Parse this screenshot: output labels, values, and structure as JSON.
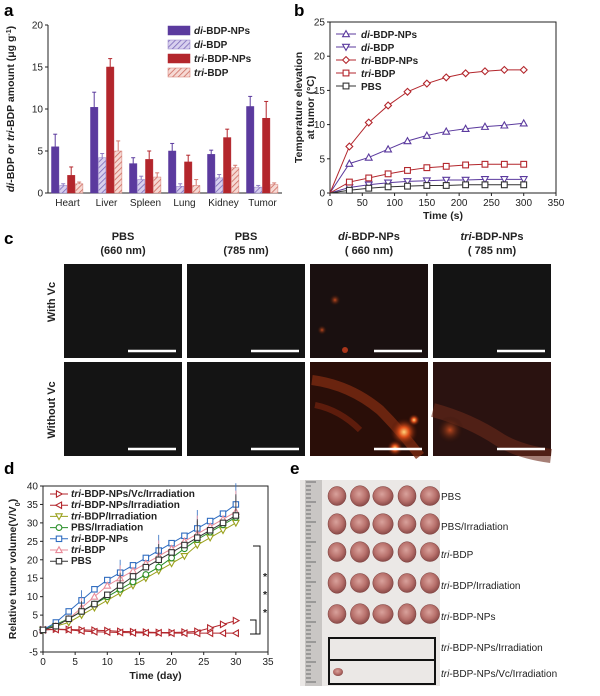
{
  "panel_labels": {
    "a": "a",
    "b": "b",
    "c": "c",
    "d": "d",
    "e": "e"
  },
  "colors": {
    "di_np": "#5b3a9e",
    "di_free": "#8f7cc4",
    "tri_np": "#b3262c",
    "tri_free": "#d4786e",
    "pbs": "#333333",
    "pbs_irr": "#2a8f2a",
    "tri_irr": "#9aa11d",
    "blue": "#2f6cc0",
    "pink": "#e88b9a"
  },
  "chart_data": [
    {
      "type": "bar",
      "panel": "a",
      "categories": [
        "Heart",
        "Liver",
        "Spleen",
        "Lung",
        "Kidney",
        "Tumor"
      ],
      "ylabel_parts": {
        "p1": "di",
        "p2": "-BDP or ",
        "p3": "tri",
        "p4": "-BDP amount (μg g",
        "p5": "-1",
        "p6": ")"
      },
      "ylim": [
        0,
        20
      ],
      "yticks": [
        "0",
        "5",
        "10",
        "15",
        "20"
      ],
      "series": [
        {
          "label_it": "di",
          "label_rest": "-BDP-NPs",
          "values": [
            5.5,
            10.2,
            3.5,
            5.0,
            4.6,
            10.3
          ],
          "errors": [
            1.5,
            1.8,
            0.7,
            0.9,
            0.5,
            1.2
          ]
        },
        {
          "label_it": "di",
          "label_rest": "-BDP",
          "values": [
            0.9,
            4.2,
            1.6,
            0.8,
            1.8,
            0.7
          ],
          "errors": [
            0.2,
            0.5,
            0.4,
            0.3,
            0.4,
            0.2
          ]
        },
        {
          "label_it": "tri",
          "label_rest": "-BDP-NPs",
          "values": [
            2.1,
            15.0,
            4.0,
            3.7,
            6.6,
            8.9
          ],
          "errors": [
            1.0,
            1.0,
            1.0,
            0.8,
            1.0,
            2.0
          ]
        },
        {
          "label_it": "tri",
          "label_rest": "-BDP",
          "values": [
            1.1,
            5.0,
            1.9,
            0.9,
            3.0,
            1.0
          ],
          "errors": [
            0.2,
            1.2,
            0.5,
            0.7,
            0.3,
            0.2
          ]
        }
      ]
    },
    {
      "type": "line",
      "panel": "b",
      "xlabel": "Time (s)",
      "ylabel_line1": "Temperature elevation",
      "ylabel_line2": "at tumor (°C)",
      "xlim": [
        0,
        350
      ],
      "ylim": [
        0,
        25
      ],
      "xticks": [
        "0",
        "50",
        "100",
        "150",
        "200",
        "250",
        "300",
        "350"
      ],
      "yticks": [
        "0",
        "5",
        "10",
        "15",
        "20",
        "25"
      ],
      "x": [
        0,
        30,
        60,
        90,
        120,
        150,
        180,
        210,
        240,
        270,
        300
      ],
      "series": [
        {
          "label_it": "di",
          "label_rest": "-BDP-NPs",
          "marker": "triangle-up",
          "values": [
            0,
            4.3,
            5.2,
            6.4,
            7.6,
            8.4,
            9.0,
            9.4,
            9.7,
            9.9,
            10.2
          ]
        },
        {
          "label_it": "di",
          "label_rest": "-BDP",
          "marker": "triangle-down",
          "values": [
            0,
            0.8,
            1.2,
            1.5,
            1.7,
            1.8,
            1.9,
            1.9,
            2.0,
            2.0,
            2.0
          ]
        },
        {
          "label_it": "tri",
          "label_rest": "-BDP-NPs",
          "marker": "diamond",
          "values": [
            0,
            6.8,
            10.3,
            12.8,
            14.8,
            16.0,
            16.9,
            17.5,
            17.8,
            18.0,
            18.0
          ]
        },
        {
          "label_it": "tri",
          "label_rest": "-BDP",
          "marker": "square",
          "values": [
            0,
            1.6,
            2.2,
            2.8,
            3.3,
            3.7,
            3.9,
            4.1,
            4.2,
            4.2,
            4.2
          ]
        },
        {
          "label_it": "",
          "label_rest": "PBS",
          "marker": "square-open",
          "values": [
            0,
            0.4,
            0.7,
            0.9,
            1.0,
            1.1,
            1.1,
            1.2,
            1.2,
            1.2,
            1.2
          ]
        }
      ]
    },
    {
      "type": "line",
      "panel": "d",
      "xlabel": "Time (day)",
      "ylabel_parts": {
        "p1": "Relative tumor volume(V/V",
        "p2": "0",
        "p3": ")"
      },
      "xlim": [
        0,
        35
      ],
      "ylim": [
        -5,
        40
      ],
      "xticks": [
        "0",
        "5",
        "10",
        "15",
        "20",
        "25",
        "30",
        "35"
      ],
      "yticks": [
        "-5",
        "0",
        "5",
        "10",
        "15",
        "20",
        "25",
        "30",
        "35",
        "40"
      ],
      "x": [
        0,
        2,
        4,
        6,
        8,
        10,
        12,
        14,
        16,
        18,
        20,
        22,
        24,
        26,
        28,
        30
      ],
      "significance": [
        "*",
        "*",
        "*"
      ],
      "series": [
        {
          "label_it": "tri",
          "label_rest": "-BDP-NPs/Vc/Irradiation",
          "marker": "triangle-right",
          "values": [
            1,
            1.2,
            1.1,
            1,
            0.9,
            0.8,
            0.6,
            0.5,
            0.4,
            0.3,
            0.3,
            0.4,
            0.6,
            1.5,
            2.5,
            3.5
          ]
        },
        {
          "label_it": "tri",
          "label_rest": "-BDP-NPs/Irradiation",
          "marker": "triangle-left",
          "values": [
            1,
            1.1,
            1,
            0.7,
            0.5,
            0.4,
            0.3,
            0.2,
            0.2,
            0.2,
            0.1,
            0.1,
            0.1,
            0.1,
            0.1,
            0.1
          ]
        },
        {
          "label_it": "tri",
          "label_rest": "-BDP/Irradiation",
          "marker": "triangle-down",
          "values": [
            1,
            2,
            3,
            5,
            7,
            9,
            11,
            13,
            15,
            17,
            19,
            21,
            24,
            26,
            28,
            30
          ]
        },
        {
          "label_it": "",
          "label_rest": "PBS/Irradiation",
          "marker": "circle",
          "values": [
            1,
            2.5,
            4,
            6,
            8,
            10,
            12,
            14,
            16,
            18,
            20.5,
            23,
            25.5,
            27.5,
            29.5,
            31.5
          ]
        },
        {
          "label_it": "tri",
          "label_rest": "-BDP-NPs",
          "marker": "square",
          "values": [
            1,
            3,
            6,
            9,
            12,
            14.5,
            16.5,
            18.5,
            20.5,
            22.5,
            24.5,
            26.5,
            28.5,
            30.5,
            32.5,
            35
          ]
        },
        {
          "label_it": "tri",
          "label_rest": "-BDP",
          "marker": "triangle-up",
          "values": [
            1,
            2,
            4,
            7,
            10,
            13,
            15,
            17,
            19,
            21,
            23,
            25,
            27,
            29,
            31,
            33
          ]
        },
        {
          "label_it": "",
          "label_rest": "PBS",
          "marker": "square-open",
          "values": [
            1,
            2,
            4,
            6,
            8,
            10.5,
            13,
            15.5,
            18,
            20,
            22,
            24,
            26,
            28,
            30,
            32
          ]
        }
      ]
    }
  ],
  "panel_c": {
    "columns": [
      {
        "line1_it": "",
        "line1": "PBS",
        "line2": "(660 nm)"
      },
      {
        "line1_it": "",
        "line1": "PBS",
        "line2": "(785 nm)"
      },
      {
        "line1_it": "di",
        "line1": "-BDP-NPs",
        "line2": "( 660 nm)"
      },
      {
        "line1_it": "tri",
        "line1": "-BDP-NPs",
        "line2": "( 785 nm)"
      }
    ],
    "rows": [
      "With Vc",
      "Without Vc"
    ]
  },
  "panel_e": {
    "labels": [
      {
        "it": "",
        "rest": "PBS"
      },
      {
        "it": "",
        "rest": "PBS/Irradiation"
      },
      {
        "it": "tri",
        "rest": "-BDP"
      },
      {
        "it": "tri",
        "rest": "-BDP/Irradiation"
      },
      {
        "it": "tri",
        "rest": "-BDP-NPs"
      },
      {
        "it": "tri",
        "rest": "-BDP-NPs/Irradiation"
      },
      {
        "it": "tri",
        "rest": "-BDP-NPs/Vc/Irradiation"
      }
    ]
  }
}
